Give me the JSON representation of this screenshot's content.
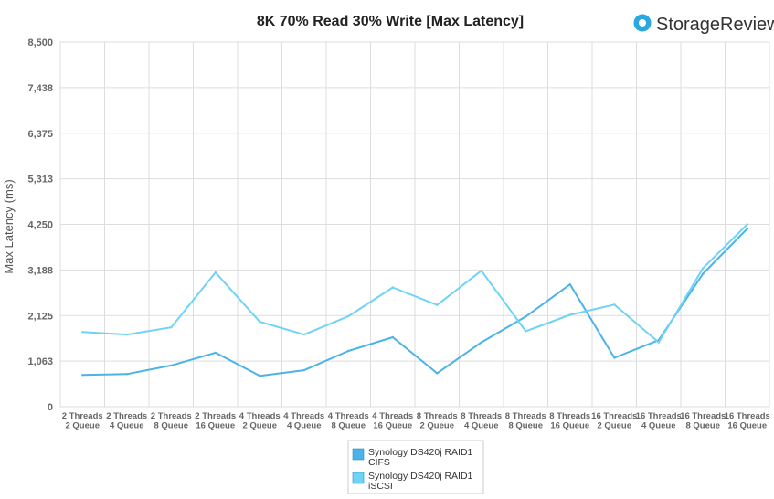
{
  "brand": {
    "name": "StorageReview",
    "logo_icon": "storagereview-logo-icon",
    "logo_color": "#2aa8e0"
  },
  "chart_data": {
    "type": "line",
    "title": "8K 70% Read 30% Write [Max Latency]",
    "xlabel": "",
    "ylabel": "Max Latency (ms)",
    "ylim": [
      0,
      8500
    ],
    "yticks": [
      "0",
      "1,063",
      "2,125",
      "3,188",
      "4,250",
      "5,313",
      "6,375",
      "7,438",
      "8,500"
    ],
    "grid": true,
    "legend_position": "bottom",
    "categories": [
      [
        "2 Threads",
        "2 Queue"
      ],
      [
        "2 Threads",
        "4 Queue"
      ],
      [
        "2 Threads",
        "8 Queue"
      ],
      [
        "2 Threads",
        "16 Queue"
      ],
      [
        "4 Threads",
        "2 Queue"
      ],
      [
        "4 Threads",
        "4 Queue"
      ],
      [
        "4 Threads",
        "8 Queue"
      ],
      [
        "4 Threads",
        "16 Queue"
      ],
      [
        "8 Threads",
        "2 Queue"
      ],
      [
        "8 Threads",
        "4 Queue"
      ],
      [
        "8 Threads",
        "8 Queue"
      ],
      [
        "8 Threads",
        "16 Queue"
      ],
      [
        "16 Threads",
        "2 Queue"
      ],
      [
        "16 Threads",
        "4 Queue"
      ],
      [
        "16 Threads",
        "8 Queue"
      ],
      [
        "16 Threads",
        "16 Queue"
      ]
    ],
    "series": [
      {
        "name": [
          "Synology DS420j RAID1",
          "CIFS"
        ],
        "color": "#4bb3e6",
        "values": [
          740,
          760,
          960,
          1260,
          720,
          850,
          1300,
          1620,
          780,
          1500,
          2100,
          2850,
          1140,
          1550,
          3100,
          4150
        ]
      },
      {
        "name": [
          "Synology DS420j RAID1",
          "iSCSI"
        ],
        "color": "#6fd3f5",
        "values": [
          1740,
          1680,
          1850,
          3130,
          1980,
          1680,
          2110,
          2780,
          2370,
          3170,
          1760,
          2140,
          2380,
          1500,
          3230,
          4250
        ]
      }
    ]
  }
}
